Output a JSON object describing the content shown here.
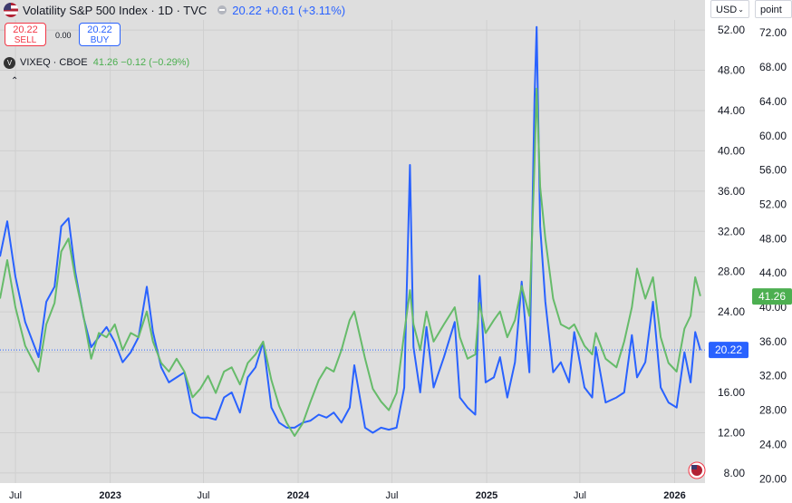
{
  "header": {
    "title": "Volatility S&P 500 Index · 1D · TVC",
    "last": "20.22",
    "change": "+0.61 (+3.11%)"
  },
  "trade": {
    "sell_price": "20.22",
    "sell_label": "SELL",
    "spread": "0.00",
    "buy_price": "20.22",
    "buy_label": "BUY"
  },
  "secondary": {
    "logo_letter": "V",
    "name": "VIXEQ · CBOE",
    "last": "41.26",
    "change": "−0.12 (−0.29%)"
  },
  "controls": {
    "currency": "USD",
    "unit": "point",
    "collapse_glyph": "⌃"
  },
  "colors": {
    "vix": "#2962ff",
    "vixeq": "#66bb6a",
    "background": "#dedede",
    "vixeq_label_bg": "#4caf50",
    "vix_label_bg": "#2962ff"
  },
  "chart_data": {
    "type": "line",
    "x_tick_labels": [
      "Jul",
      "2023",
      "Jul",
      "2024",
      "Jul",
      "2025",
      "Jul",
      "2026"
    ],
    "x_tick_dates": [
      "2022-07-01",
      "2023-01-01",
      "2023-07-01",
      "2024-01-01",
      "2024-07-01",
      "2025-01-01",
      "2025-07-01",
      "2026-01-01"
    ],
    "x_range": [
      "2022-06-01",
      "2026-03-01"
    ],
    "left_axis": {
      "ticks": [
        "8.00",
        "12.00",
        "16.00",
        "20.00",
        "24.00",
        "28.00",
        "32.00",
        "36.00",
        "40.00",
        "44.00",
        "48.00",
        "52.00"
      ],
      "range": [
        7.0,
        53.0
      ]
    },
    "right_axis": {
      "ticks": [
        "20.00",
        "24.00",
        "28.00",
        "32.00",
        "36.00",
        "40.00",
        "44.00",
        "48.00",
        "52.00",
        "56.00",
        "60.00",
        "64.00",
        "68.00",
        "72.00"
      ],
      "range": [
        19.5,
        73.5
      ]
    },
    "last_price_labels": {
      "vix": "20.22",
      "vixeq": "41.26"
    },
    "series": [
      {
        "name": "Volatility S&P 500 Index",
        "axis": "left",
        "points": [
          [
            "2022-06-01",
            29.5
          ],
          [
            "2022-06-15",
            33.0
          ],
          [
            "2022-07-01",
            27.5
          ],
          [
            "2022-07-20",
            23.0
          ],
          [
            "2022-08-15",
            19.5
          ],
          [
            "2022-08-30",
            25.0
          ],
          [
            "2022-09-15",
            26.5
          ],
          [
            "2022-09-28",
            32.5
          ],
          [
            "2022-10-12",
            33.3
          ],
          [
            "2022-10-25",
            28.0
          ],
          [
            "2022-11-10",
            23.5
          ],
          [
            "2022-11-25",
            20.5
          ],
          [
            "2022-12-10",
            21.5
          ],
          [
            "2022-12-25",
            22.5
          ],
          [
            "2023-01-10",
            21.0
          ],
          [
            "2023-01-25",
            19.0
          ],
          [
            "2023-02-10",
            20.0
          ],
          [
            "2023-02-25",
            21.5
          ],
          [
            "2023-03-13",
            26.5
          ],
          [
            "2023-03-25",
            22.0
          ],
          [
            "2023-04-10",
            18.5
          ],
          [
            "2023-04-25",
            17.0
          ],
          [
            "2023-05-10",
            17.5
          ],
          [
            "2023-05-25",
            18.0
          ],
          [
            "2023-06-10",
            14.0
          ],
          [
            "2023-06-25",
            13.5
          ],
          [
            "2023-07-10",
            13.5
          ],
          [
            "2023-07-25",
            13.3
          ],
          [
            "2023-08-10",
            15.5
          ],
          [
            "2023-08-25",
            16.0
          ],
          [
            "2023-09-10",
            14.0
          ],
          [
            "2023-09-25",
            17.5
          ],
          [
            "2023-10-10",
            18.5
          ],
          [
            "2023-10-25",
            21.0
          ],
          [
            "2023-11-10",
            14.5
          ],
          [
            "2023-11-25",
            13.0
          ],
          [
            "2023-12-10",
            12.5
          ],
          [
            "2023-12-25",
            12.5
          ],
          [
            "2024-01-10",
            13.0
          ],
          [
            "2024-01-25",
            13.2
          ],
          [
            "2024-02-10",
            13.8
          ],
          [
            "2024-02-25",
            13.5
          ],
          [
            "2024-03-10",
            14.0
          ],
          [
            "2024-03-25",
            13.0
          ],
          [
            "2024-04-10",
            14.5
          ],
          [
            "2024-04-19",
            18.7
          ],
          [
            "2024-05-10",
            12.5
          ],
          [
            "2024-05-25",
            12.0
          ],
          [
            "2024-06-10",
            12.5
          ],
          [
            "2024-06-25",
            12.3
          ],
          [
            "2024-07-10",
            12.5
          ],
          [
            "2024-07-25",
            16.5
          ],
          [
            "2024-08-05",
            38.6
          ],
          [
            "2024-08-12",
            20.5
          ],
          [
            "2024-08-25",
            16.0
          ],
          [
            "2024-09-06",
            22.5
          ],
          [
            "2024-09-20",
            16.5
          ],
          [
            "2024-10-10",
            19.5
          ],
          [
            "2024-10-31",
            23.0
          ],
          [
            "2024-11-10",
            15.5
          ],
          [
            "2024-11-25",
            14.5
          ],
          [
            "2024-12-10",
            13.8
          ],
          [
            "2024-12-18",
            27.6
          ],
          [
            "2024-12-30",
            17.0
          ],
          [
            "2025-01-15",
            17.5
          ],
          [
            "2025-01-27",
            19.5
          ],
          [
            "2025-02-10",
            15.5
          ],
          [
            "2025-02-25",
            19.0
          ],
          [
            "2025-03-10",
            27.0
          ],
          [
            "2025-03-25",
            18.0
          ],
          [
            "2025-04-04",
            45.3
          ],
          [
            "2025-04-08",
            52.3
          ],
          [
            "2025-04-15",
            32.5
          ],
          [
            "2025-04-25",
            25.0
          ],
          [
            "2025-05-10",
            18.0
          ],
          [
            "2025-05-25",
            19.0
          ],
          [
            "2025-06-10",
            17.0
          ],
          [
            "2025-06-20",
            22.0
          ],
          [
            "2025-07-10",
            16.5
          ],
          [
            "2025-07-25",
            15.5
          ],
          [
            "2025-08-01",
            20.5
          ],
          [
            "2025-08-20",
            15.0
          ],
          [
            "2025-09-10",
            15.5
          ],
          [
            "2025-09-25",
            16.0
          ],
          [
            "2025-10-10",
            21.7
          ],
          [
            "2025-10-20",
            17.5
          ],
          [
            "2025-11-05",
            19.0
          ],
          [
            "2025-11-20",
            25.0
          ],
          [
            "2025-12-05",
            16.5
          ],
          [
            "2025-12-20",
            15.0
          ],
          [
            "2026-01-05",
            14.5
          ],
          [
            "2026-01-20",
            20.0
          ],
          [
            "2026-02-01",
            17.0
          ],
          [
            "2026-02-10",
            22.0
          ],
          [
            "2026-02-20",
            20.2
          ]
        ]
      },
      {
        "name": "VIXEQ · CBOE",
        "axis": "right",
        "points": [
          [
            "2022-06-01",
            41.0
          ],
          [
            "2022-06-15",
            45.5
          ],
          [
            "2022-07-01",
            40.0
          ],
          [
            "2022-07-20",
            35.5
          ],
          [
            "2022-08-15",
            32.5
          ],
          [
            "2022-08-30",
            38.0
          ],
          [
            "2022-09-15",
            40.5
          ],
          [
            "2022-09-28",
            46.5
          ],
          [
            "2022-10-12",
            48.0
          ],
          [
            "2022-10-25",
            43.5
          ],
          [
            "2022-11-10",
            39.0
          ],
          [
            "2022-11-25",
            34.0
          ],
          [
            "2022-12-10",
            37.0
          ],
          [
            "2022-12-25",
            36.5
          ],
          [
            "2023-01-10",
            38.0
          ],
          [
            "2023-01-25",
            35.0
          ],
          [
            "2023-02-10",
            37.0
          ],
          [
            "2023-02-25",
            36.5
          ],
          [
            "2023-03-13",
            39.5
          ],
          [
            "2023-03-25",
            36.0
          ],
          [
            "2023-04-10",
            33.5
          ],
          [
            "2023-04-25",
            32.5
          ],
          [
            "2023-05-10",
            34.0
          ],
          [
            "2023-05-25",
            32.5
          ],
          [
            "2023-06-10",
            29.5
          ],
          [
            "2023-06-25",
            30.5
          ],
          [
            "2023-07-10",
            32.0
          ],
          [
            "2023-07-25",
            30.0
          ],
          [
            "2023-08-10",
            32.5
          ],
          [
            "2023-08-25",
            33.0
          ],
          [
            "2023-09-10",
            31.0
          ],
          [
            "2023-09-25",
            33.5
          ],
          [
            "2023-10-10",
            34.5
          ],
          [
            "2023-10-25",
            36.0
          ],
          [
            "2023-11-10",
            31.5
          ],
          [
            "2023-11-25",
            28.5
          ],
          [
            "2023-12-10",
            26.5
          ],
          [
            "2023-12-25",
            25.0
          ],
          [
            "2024-01-10",
            26.5
          ],
          [
            "2024-01-25",
            29.0
          ],
          [
            "2024-02-10",
            31.5
          ],
          [
            "2024-02-25",
            33.0
          ],
          [
            "2024-03-10",
            32.5
          ],
          [
            "2024-03-25",
            35.0
          ],
          [
            "2024-04-10",
            38.5
          ],
          [
            "2024-04-19",
            39.5
          ],
          [
            "2024-05-10",
            34.0
          ],
          [
            "2024-05-25",
            30.5
          ],
          [
            "2024-06-10",
            29.0
          ],
          [
            "2024-06-25",
            28.0
          ],
          [
            "2024-07-10",
            30.0
          ],
          [
            "2024-07-25",
            37.0
          ],
          [
            "2024-08-05",
            42.0
          ],
          [
            "2024-08-12",
            38.0
          ],
          [
            "2024-08-25",
            35.0
          ],
          [
            "2024-09-06",
            39.5
          ],
          [
            "2024-09-20",
            36.0
          ],
          [
            "2024-10-10",
            38.0
          ],
          [
            "2024-10-31",
            40.0
          ],
          [
            "2024-11-10",
            36.5
          ],
          [
            "2024-11-25",
            34.0
          ],
          [
            "2024-12-10",
            34.5
          ],
          [
            "2024-12-18",
            40.5
          ],
          [
            "2024-12-30",
            37.0
          ],
          [
            "2025-01-15",
            38.5
          ],
          [
            "2025-01-27",
            39.5
          ],
          [
            "2025-02-10",
            36.5
          ],
          [
            "2025-02-25",
            38.5
          ],
          [
            "2025-03-10",
            42.5
          ],
          [
            "2025-03-25",
            39.0
          ],
          [
            "2025-04-04",
            57.0
          ],
          [
            "2025-04-08",
            65.5
          ],
          [
            "2025-04-15",
            54.0
          ],
          [
            "2025-04-25",
            48.0
          ],
          [
            "2025-05-10",
            41.0
          ],
          [
            "2025-05-25",
            38.0
          ],
          [
            "2025-06-10",
            37.5
          ],
          [
            "2025-06-20",
            38.0
          ],
          [
            "2025-07-10",
            35.5
          ],
          [
            "2025-07-25",
            34.5
          ],
          [
            "2025-08-01",
            37.0
          ],
          [
            "2025-08-20",
            34.0
          ],
          [
            "2025-09-10",
            33.0
          ],
          [
            "2025-09-25",
            36.0
          ],
          [
            "2025-10-10",
            40.0
          ],
          [
            "2025-10-20",
            44.5
          ],
          [
            "2025-11-05",
            41.0
          ],
          [
            "2025-11-20",
            43.5
          ],
          [
            "2025-12-05",
            36.5
          ],
          [
            "2025-12-20",
            33.5
          ],
          [
            "2026-01-05",
            32.5
          ],
          [
            "2026-01-20",
            37.5
          ],
          [
            "2026-02-01",
            39.0
          ],
          [
            "2026-02-10",
            43.5
          ],
          [
            "2026-02-20",
            41.3
          ]
        ]
      }
    ]
  }
}
